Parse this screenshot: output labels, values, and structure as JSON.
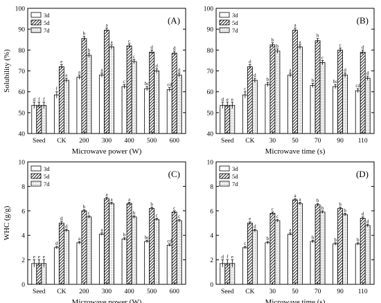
{
  "chart_data": [
    {
      "type": "bar",
      "panel_label": "(A)",
      "xlabel": "Microwave power (W)",
      "ylabel": "Solubility (%)",
      "ylim": [
        40,
        100
      ],
      "yticks": [
        40,
        50,
        60,
        70,
        80,
        90,
        100
      ],
      "categories": [
        "Seed",
        "CK",
        "200",
        "300",
        "400",
        "500",
        "600"
      ],
      "legend": [
        "3d",
        "5d",
        "7d"
      ],
      "legend_position": "top-left",
      "series": [
        {
          "name": "3d",
          "values": [
            53.5,
            58.5,
            67,
            68,
            62.5,
            61.5,
            61
          ],
          "errors": [
            1.5,
            1.5,
            1,
            1,
            1,
            1,
            1
          ],
          "labels": [
            "d",
            "f",
            "a",
            "a",
            "c",
            "bc",
            "cd"
          ]
        },
        {
          "name": "5d",
          "values": [
            53.5,
            72,
            85.5,
            89.5,
            82,
            79,
            78.5
          ],
          "errors": [
            1.5,
            1,
            1,
            1,
            1,
            1,
            1
          ],
          "labels": [
            "f",
            "e",
            "b",
            "a",
            "c",
            "d",
            "d"
          ]
        },
        {
          "name": "7d",
          "values": [
            53.5,
            65.5,
            77.5,
            81.5,
            74.5,
            70,
            68
          ],
          "errors": [
            1.5,
            1,
            1,
            1,
            1,
            1,
            1
          ],
          "labels": [
            "f",
            "e",
            "b",
            "a",
            "c",
            "d",
            "d"
          ]
        }
      ]
    },
    {
      "type": "bar",
      "panel_label": "(B)",
      "xlabel": "Microwave time (s)",
      "ylabel": "",
      "ylim": [
        40,
        100
      ],
      "yticks": [
        40,
        50,
        60,
        70,
        80,
        90,
        100
      ],
      "categories": [
        "Seed",
        "CK",
        "30",
        "50",
        "70",
        "90",
        "110"
      ],
      "legend": [
        "3d",
        "5d",
        "7d"
      ],
      "legend_position": "top-left",
      "series": [
        {
          "name": "3d",
          "values": [
            53.5,
            58.5,
            63.5,
            68,
            63,
            62.5,
            60.5
          ],
          "errors": [
            1.5,
            1.5,
            1,
            1,
            1,
            1,
            1
          ],
          "labels": [
            "d",
            "c",
            "b",
            "a",
            "b",
            "bc",
            "cd"
          ]
        },
        {
          "name": "5d",
          "values": [
            53.5,
            72,
            82.5,
            89.5,
            84.5,
            80,
            79
          ],
          "errors": [
            1.5,
            1,
            1,
            1,
            1,
            1,
            1
          ],
          "labels": [
            "e",
            "d",
            "b",
            "a",
            "b",
            "c",
            "d"
          ]
        },
        {
          "name": "7d",
          "values": [
            53.5,
            65.5,
            79.5,
            81.5,
            74,
            68,
            66.5
          ],
          "errors": [
            1.5,
            1,
            1,
            1,
            1,
            1,
            1
          ],
          "labels": [
            "e",
            "d",
            "b",
            "a",
            "c",
            "d",
            "d"
          ]
        }
      ]
    },
    {
      "type": "bar",
      "panel_label": "(C)",
      "xlabel": "Microwave power (W)",
      "ylabel": "WHC (g/g)",
      "ylim": [
        0,
        10
      ],
      "yticks": [
        0,
        2,
        4,
        6,
        8,
        10
      ],
      "categories": [
        "Seed",
        "CK",
        "200",
        "300",
        "400",
        "500",
        "600"
      ],
      "legend": [
        "3d",
        "5d",
        "7d"
      ],
      "legend_position": "top-left",
      "series": [
        {
          "name": "3d",
          "values": [
            1.7,
            3.0,
            3.4,
            4.1,
            3.7,
            3.5,
            3.2
          ],
          "errors": [
            0.3,
            0.1,
            0.1,
            0.1,
            0.1,
            0.1,
            0.1
          ],
          "labels": [
            "e",
            "d",
            "a",
            "a",
            "b",
            "bc",
            "cd"
          ]
        },
        {
          "name": "5d",
          "values": [
            1.7,
            5.0,
            6.0,
            7.0,
            6.6,
            6.2,
            5.9
          ],
          "errors": [
            0.3,
            0.15,
            0.1,
            0.1,
            0.1,
            0.1,
            0.1
          ],
          "labels": [
            "e",
            "d",
            "b",
            "a",
            "a",
            "b",
            "c"
          ]
        },
        {
          "name": "7d",
          "values": [
            1.7,
            4.4,
            5.5,
            6.6,
            5.5,
            5.3,
            5.2
          ],
          "errors": [
            0.3,
            0.1,
            0.1,
            0.1,
            0.1,
            0.1,
            0.1
          ],
          "labels": [
            "e",
            "d",
            "c",
            "a",
            "b",
            "c",
            "c"
          ]
        }
      ]
    },
    {
      "type": "bar",
      "panel_label": "(D)",
      "xlabel": "Microwave time (s)",
      "ylabel": "",
      "ylim": [
        0,
        10
      ],
      "yticks": [
        0,
        2,
        4,
        6,
        8,
        10
      ],
      "categories": [
        "Seed",
        "CK",
        "30",
        "50",
        "70",
        "90",
        "110"
      ],
      "legend": [
        "3d",
        "5d",
        "7d"
      ],
      "legend_position": "top-left",
      "series": [
        {
          "name": "3d",
          "values": [
            1.7,
            3.0,
            3.4,
            4.1,
            3.5,
            3.3,
            3.3
          ],
          "errors": [
            0.3,
            0.1,
            0.1,
            0.1,
            0.1,
            0.1,
            0.1
          ],
          "labels": [
            "d",
            "c",
            "b",
            "a",
            "b",
            "b",
            "b"
          ]
        },
        {
          "name": "5d",
          "values": [
            1.7,
            5.0,
            5.8,
            6.9,
            6.5,
            6.2,
            5.4
          ],
          "errors": [
            0.3,
            0.1,
            0.1,
            0.1,
            0.1,
            0.1,
            0.1
          ],
          "labels": [
            "f",
            "e",
            "c",
            "a",
            "b",
            "b",
            "d"
          ]
        },
        {
          "name": "7d",
          "values": [
            1.7,
            4.4,
            5.2,
            6.6,
            5.9,
            5.7,
            4.8
          ],
          "errors": [
            0.3,
            0.1,
            0.1,
            0.1,
            0.1,
            0.1,
            0.1
          ],
          "labels": [
            "e",
            "d",
            "c",
            "a",
            "b",
            "b",
            "d"
          ]
        }
      ]
    }
  ]
}
